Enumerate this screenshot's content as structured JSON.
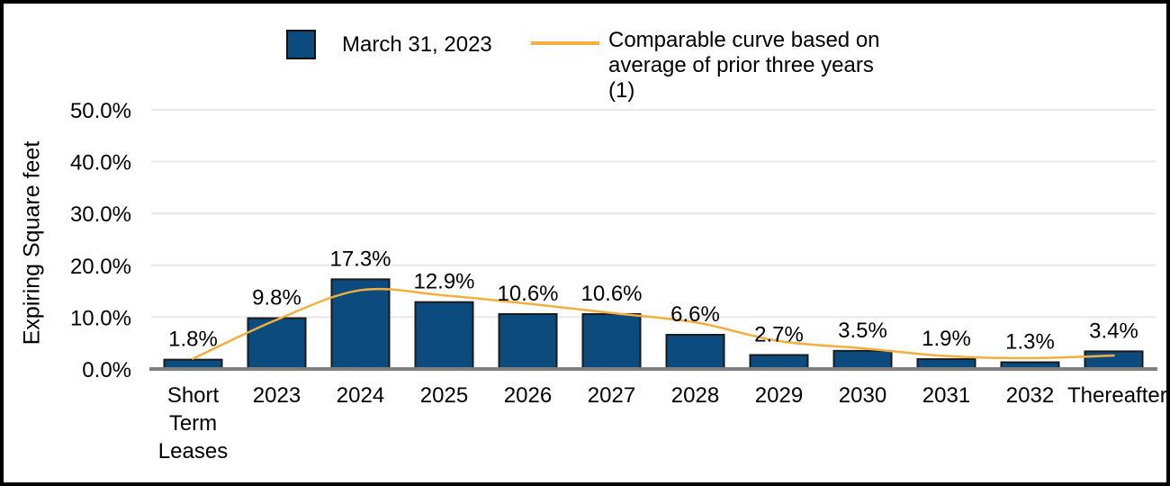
{
  "chart_data": {
    "type": "bar",
    "title": "",
    "categories": [
      "Short Term Leases",
      "2023",
      "2024",
      "2025",
      "2026",
      "2027",
      "2028",
      "2029",
      "2030",
      "2031",
      "2032",
      "Thereafter"
    ],
    "series": [
      {
        "name": "March 31, 2023",
        "type": "bar",
        "values": [
          1.8,
          9.8,
          17.3,
          12.9,
          10.6,
          10.6,
          6.6,
          2.7,
          3.5,
          1.9,
          1.3,
          3.4
        ],
        "data_labels": [
          "1.8%",
          "9.8%",
          "17.3%",
          "12.9%",
          "10.6%",
          "10.6%",
          "6.6%",
          "2.7%",
          "3.5%",
          "1.9%",
          "1.3%",
          "3.4%"
        ],
        "color": "#0C4B7E"
      },
      {
        "name": "Comparable curve based on average of prior three years (1)",
        "type": "line",
        "values": [
          2.0,
          9.5,
          15.2,
          14.2,
          12.6,
          10.8,
          9.0,
          5.4,
          4.0,
          2.5,
          2.1,
          2.6
        ],
        "color": "#F2AF3E"
      }
    ],
    "xlabel": "",
    "ylabel": "Expiring Square feet",
    "ylim": [
      0,
      50
    ],
    "yticks": [
      {
        "value": 0,
        "label": "0.0%"
      },
      {
        "value": 10,
        "label": "10.0%"
      },
      {
        "value": 20,
        "label": "20.0%"
      },
      {
        "value": 30,
        "label": "30.0%"
      },
      {
        "value": 40,
        "label": "40.0%"
      },
      {
        "value": 50,
        "label": "50.0%"
      }
    ],
    "grid": true,
    "legend_position": "top"
  },
  "legend": {
    "bar_label": "March 31, 2023",
    "line_label": "Comparable curve based on average of prior three years (1)"
  },
  "colors": {
    "bar_fill": "#0C4B7E",
    "bar_border": "#1A1A1A",
    "line": "#F2AF3E",
    "gridline": "#E8E8E8",
    "axis_line": "#7F7F7F",
    "text": "#000000",
    "frame_border": "#000000"
  }
}
